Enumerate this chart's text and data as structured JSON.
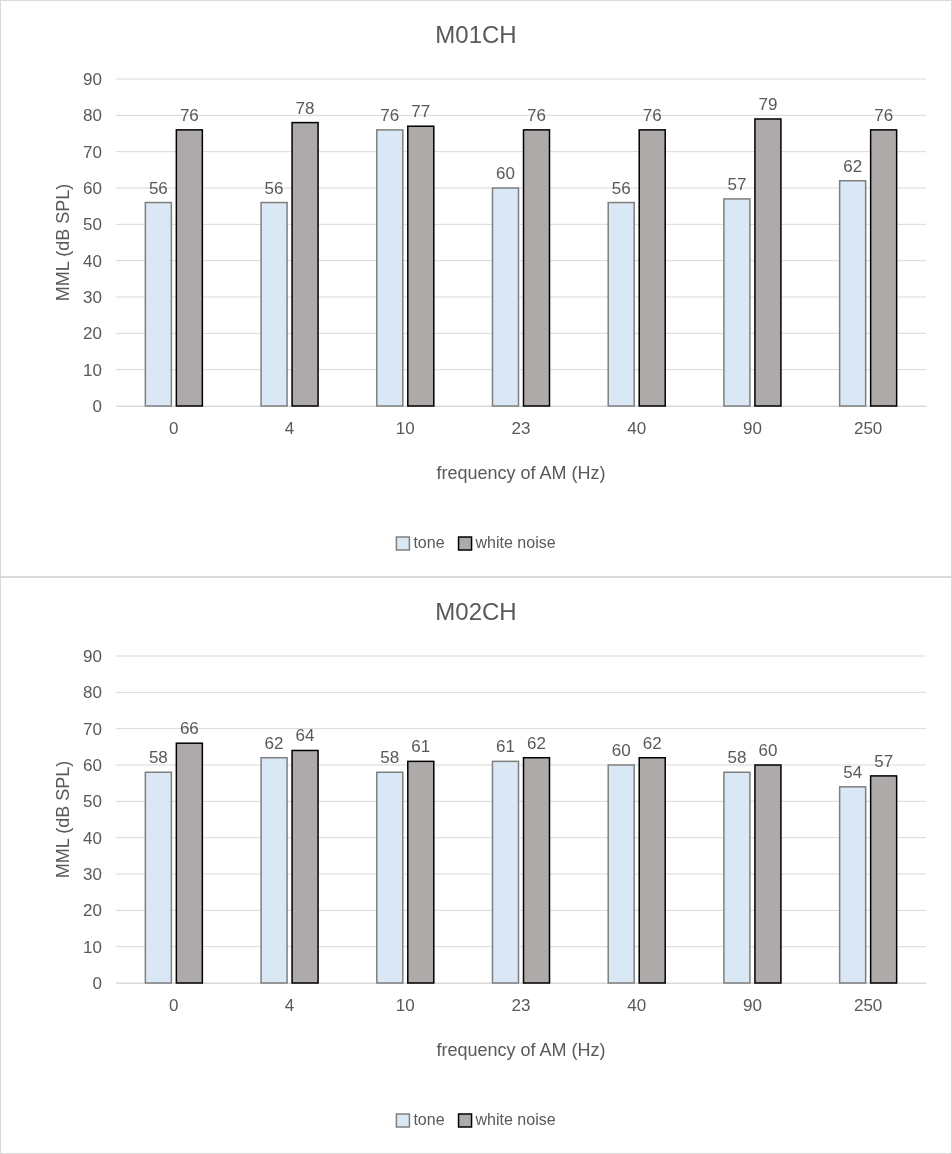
{
  "chart_data": [
    {
      "type": "bar",
      "title": "M01CH",
      "xlabel": "frequency of AM (Hz)",
      "ylabel": "MML (dB SPL)",
      "categories": [
        "0",
        "4",
        "10",
        "23",
        "40",
        "90",
        "250"
      ],
      "series": [
        {
          "name": "tone",
          "color": "#dae8f5",
          "values": [
            56,
            56,
            76,
            60,
            56,
            57,
            62
          ]
        },
        {
          "name": "white noise",
          "color": "#aeaaaa",
          "values": [
            76,
            78,
            77,
            76,
            76,
            79,
            76
          ]
        }
      ],
      "ylim": [
        0,
        90
      ],
      "yticks": [
        0,
        10,
        20,
        30,
        40,
        50,
        60,
        70,
        80,
        90
      ],
      "grid": "y",
      "legend": "bottom",
      "data_labels": true
    },
    {
      "type": "bar",
      "title": "M02CH",
      "xlabel": "frequency of AM (Hz)",
      "ylabel": "MML (dB SPL)",
      "categories": [
        "0",
        "4",
        "10",
        "23",
        "40",
        "90",
        "250"
      ],
      "series": [
        {
          "name": "tone",
          "color": "#dae8f5",
          "values": [
            58,
            62,
            58,
            61,
            60,
            58,
            54
          ]
        },
        {
          "name": "white noise",
          "color": "#aeaaaa",
          "values": [
            66,
            64,
            61,
            62,
            62,
            60,
            57
          ]
        }
      ],
      "ylim": [
        0,
        90
      ],
      "yticks": [
        0,
        10,
        20,
        30,
        40,
        50,
        60,
        70,
        80,
        90
      ],
      "grid": "y",
      "legend": "bottom",
      "data_labels": true
    }
  ]
}
